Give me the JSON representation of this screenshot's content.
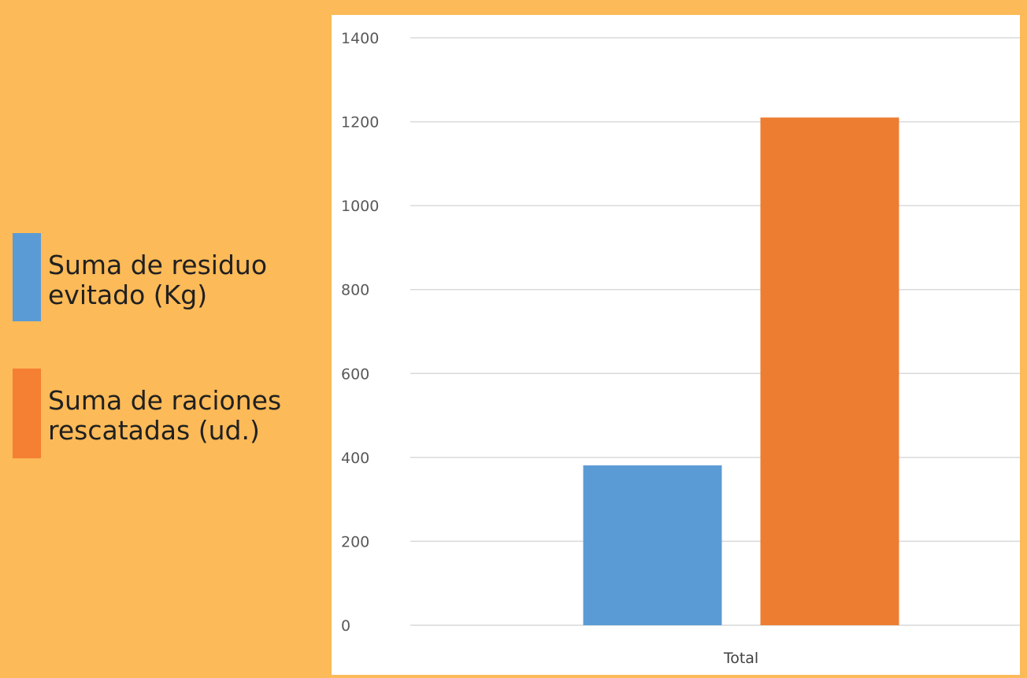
{
  "colors": {
    "background": "#FCBA58",
    "panel": "#FFFFFF",
    "gridline": "#D9D9D9",
    "series_1": "#5B9BD5",
    "series_2": "#ED7D31",
    "legend_swatch_1": "#5B9BD5",
    "legend_swatch_2": "#F58034"
  },
  "legend": {
    "items": [
      {
        "label": "Suma de residuo evitado (Kg)"
      },
      {
        "label": "Suma de raciones rescatadas (ud.)"
      }
    ]
  },
  "chart_data": {
    "type": "bar",
    "categories": [
      "Total"
    ],
    "series": [
      {
        "name": "Suma de residuo evitado (Kg)",
        "values": [
          381
        ]
      },
      {
        "name": "Suma de raciones rescatadas (ud.)",
        "values": [
          1210
        ]
      }
    ],
    "y_ticks": [
      "0",
      "200",
      "400",
      "600",
      "800",
      "1000",
      "1200",
      "1400"
    ],
    "ylim": [
      0,
      1400
    ],
    "grid": true,
    "legend_position": "left"
  }
}
